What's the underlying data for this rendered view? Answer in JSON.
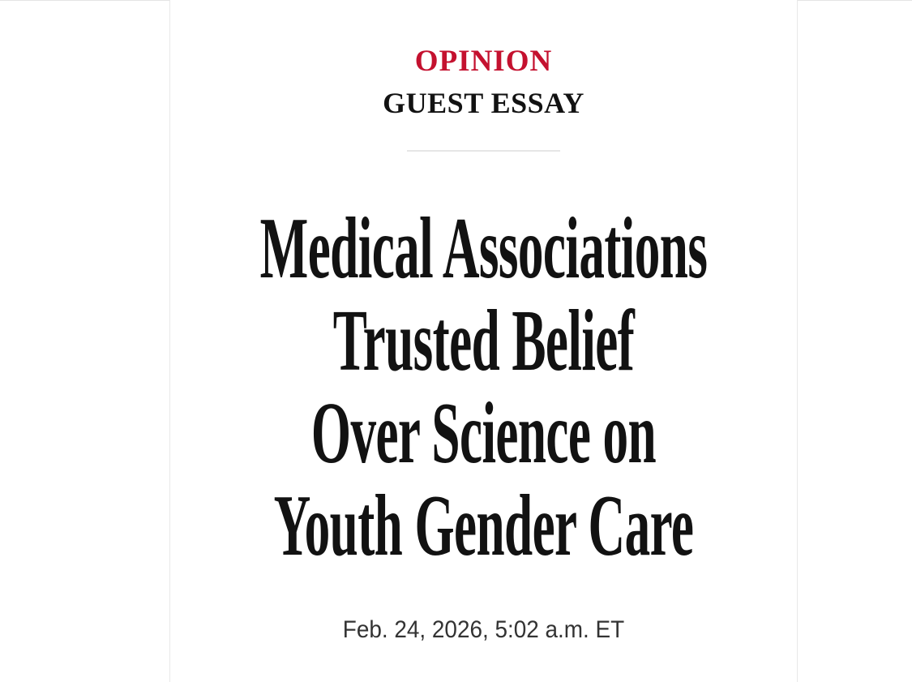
{
  "article": {
    "section": "OPINION",
    "label": "GUEST ESSAY",
    "headline_lines": [
      "Medical Associations",
      "Trusted Belief",
      "Over Science on",
      "Youth Gender Care"
    ],
    "timestamp": "Feb. 24, 2026, 5:02 a.m. ET"
  },
  "colors": {
    "section": "#c4112f",
    "headline": "#121212",
    "timestamp": "#333333"
  }
}
